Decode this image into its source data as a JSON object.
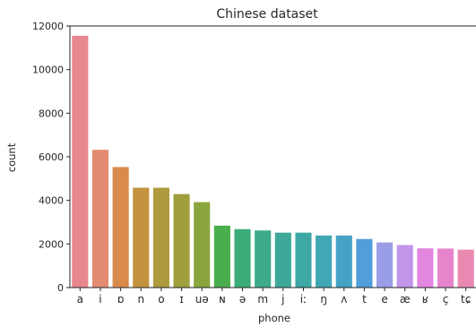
{
  "chart_data": {
    "type": "bar",
    "title": "Chinese dataset",
    "xlabel": "phone",
    "ylabel": "count",
    "categories": [
      "a",
      "i",
      "ɒ",
      "n",
      "o",
      "ɪ",
      "uə",
      "ɴ",
      "ə",
      "m",
      "j",
      "iː",
      "ŋ",
      "ʌ",
      "t",
      "e",
      "æ",
      "ʁ",
      "ç",
      "tɕ"
    ],
    "values": [
      11550,
      6320,
      5530,
      4580,
      4580,
      4290,
      3920,
      2840,
      2680,
      2620,
      2520,
      2520,
      2390,
      2390,
      2230,
      2070,
      1950,
      1800,
      1790,
      1740
    ],
    "colors": [
      "#e8878e",
      "#e38b70",
      "#d98b4d",
      "#c39340",
      "#ae9a3f",
      "#9fa03d",
      "#8aa53d",
      "#4aae4e",
      "#3bac78",
      "#3caa8b",
      "#3ea99a",
      "#3ea8a5",
      "#41a7b4",
      "#45a3c6",
      "#519edb",
      "#9a9ee7",
      "#c196e8",
      "#e286e0",
      "#e685cc",
      "#e989b2"
    ],
    "yticks": [
      0,
      2000,
      4000,
      6000,
      8000,
      10000,
      12000
    ],
    "ylim": [
      0,
      12000
    ],
    "grid": false,
    "legend": "none"
  }
}
